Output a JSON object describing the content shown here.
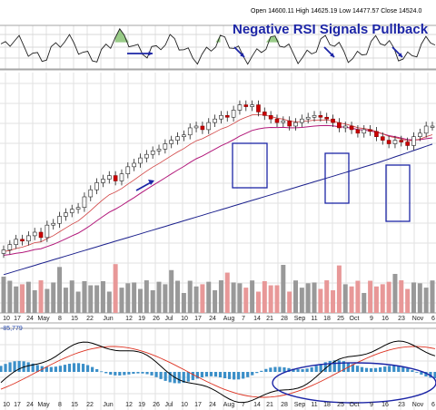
{
  "header": {
    "open_label": "Open",
    "open_value": "14600.11",
    "high_label": "High",
    "high_value": "14625.19",
    "low_label": "Low",
    "low_value": "14477.57",
    "close_label": "Close",
    "close_value": "14524.0"
  },
  "annotation": "Negative RSI Signals Pullback",
  "indicator_readout": "-85,779",
  "chart_data": [
    {
      "type": "line",
      "panel": "RSI",
      "overlays": [
        "blue arrow markers"
      ],
      "grid": true
    },
    {
      "type": "candlestick",
      "panel": "price",
      "series": [
        {
          "name": "",
          "kind": "candles",
          "color": "#cc0000",
          "closes": [
            14000,
            14030,
            14060,
            14050,
            14080,
            14100,
            14070,
            14140,
            14150,
            14190,
            14210,
            14230,
            14240,
            14300,
            14340,
            14380,
            14400,
            14420,
            14390,
            14430,
            14470,
            14490,
            14520,
            14540,
            14560,
            14570,
            14600,
            14620,
            14640,
            14650,
            14690,
            14700,
            14680,
            14720,
            14740,
            14760,
            14750,
            14790,
            14820,
            14810,
            14820,
            14780,
            14760,
            14740,
            14720,
            14730,
            14700,
            14720,
            14740,
            14750,
            14760,
            14750,
            14740,
            14720,
            14690,
            14700,
            14680,
            14660,
            14680,
            14670,
            14640,
            14620,
            14600,
            14620,
            14610,
            14590,
            14640,
            14660,
            14700,
            14700
          ]
        },
        {
          "name": "",
          "kind": "line",
          "color": "#b2187a"
        },
        {
          "name": "",
          "kind": "line",
          "color": "#1a1f8c"
        }
      ],
      "highlight_boxes": 3,
      "grid": true
    },
    {
      "type": "bar",
      "panel": "volume",
      "colors": {
        "up": "#999999",
        "down": "#e89898"
      }
    },
    {
      "type": "line",
      "panel": "MACD",
      "series": [
        {
          "name": "",
          "color": "#000000"
        },
        {
          "name": "",
          "color": "#dd3322"
        },
        {
          "name": "",
          "kind": "histogram",
          "color": "#3b8fc8"
        }
      ],
      "grid": true
    }
  ],
  "x_axis": {
    "tick_labels": [
      "10",
      "17",
      "24",
      "May",
      "8",
      "15",
      "22",
      "Jun",
      "12",
      "19",
      "26",
      "Jul",
      "10",
      "17",
      "24",
      "Aug",
      "7",
      "14",
      "21",
      "28",
      "Sep",
      "11",
      "18",
      "25",
      "Oct",
      "9",
      "16",
      "23",
      "Nov",
      "6"
    ]
  },
  "colors": {
    "annotation": "#1c25a6",
    "box": "#1c25a6",
    "ema_fast": "#b2187a",
    "ma_slow": "#1a1f8c"
  }
}
